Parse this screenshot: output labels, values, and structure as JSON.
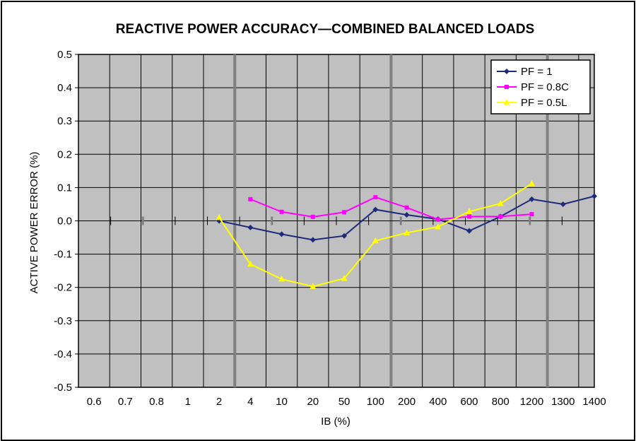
{
  "chart_data": {
    "type": "line",
    "title": "REACTIVE POWER ACCURACY—COMBINED BALANCED LOADS",
    "xlabel": "IB (%)",
    "ylabel": "ACTIVE POWER ERROR (%)",
    "categories": [
      "0.6",
      "0.7",
      "0.8",
      "1",
      "2",
      "4",
      "10",
      "20",
      "50",
      "100",
      "200",
      "400",
      "600",
      "800",
      "1200",
      "1300",
      "1400"
    ],
    "yticks": [
      "0.5",
      "0.4",
      "0.3",
      "0.2",
      "0.1",
      "0.0",
      "-0.1",
      "-0.2",
      "-0.3",
      "-0.4",
      "-0.5"
    ],
    "ylim": [
      -0.5,
      0.5
    ],
    "grid": true,
    "legend_position": "top-right",
    "series": [
      {
        "name": "PF = 1",
        "color": "#1f2a7a",
        "marker": "diamond",
        "points": [
          [
            "2",
            0.0
          ],
          [
            "4",
            -0.02
          ],
          [
            "10",
            -0.04
          ],
          [
            "20",
            -0.057
          ],
          [
            "50",
            -0.045
          ],
          [
            "100",
            0.034
          ],
          [
            "200",
            0.018
          ],
          [
            "400",
            0.005
          ],
          [
            "600",
            -0.03
          ],
          [
            "800",
            0.013
          ],
          [
            "1200",
            0.065
          ],
          [
            "1300",
            0.05
          ],
          [
            "1400",
            0.074
          ]
        ]
      },
      {
        "name": "PF = 0.8C",
        "color": "#ff00ff",
        "marker": "square",
        "points": [
          [
            "4",
            0.065
          ],
          [
            "10",
            0.027
          ],
          [
            "20",
            0.012
          ],
          [
            "50",
            0.026
          ],
          [
            "100",
            0.071
          ],
          [
            "200",
            0.04
          ],
          [
            "400",
            0.004
          ],
          [
            "600",
            0.013
          ],
          [
            "800",
            0.013
          ],
          [
            "1200",
            0.02
          ]
        ]
      },
      {
        "name": "PF = 0.5L",
        "color": "#ffff00",
        "marker": "triangle",
        "points": [
          [
            "2",
            0.01
          ],
          [
            "4",
            -0.13
          ],
          [
            "10",
            -0.175
          ],
          [
            "20",
            -0.197
          ],
          [
            "50",
            -0.173
          ],
          [
            "100",
            -0.06
          ],
          [
            "200",
            -0.036
          ],
          [
            "400",
            -0.018
          ],
          [
            "600",
            0.028
          ],
          [
            "800",
            0.052
          ],
          [
            "1200",
            0.112
          ]
        ]
      }
    ]
  }
}
